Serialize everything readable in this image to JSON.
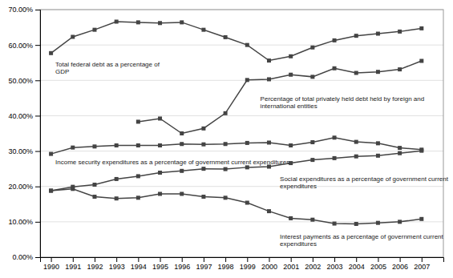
{
  "chart_data": {
    "type": "line",
    "x": [
      1990,
      1991,
      1992,
      1993,
      1994,
      1995,
      1996,
      1997,
      1998,
      1999,
      2000,
      2001,
      2002,
      2003,
      2004,
      2005,
      2006,
      2007
    ],
    "series": [
      {
        "color": "#444444",
        "marker": "square",
        "values": [
          0.577,
          0.623,
          0.643,
          0.666,
          0.664,
          0.662,
          0.664,
          0.643,
          0.622,
          0.6,
          0.556,
          0.568,
          0.593,
          0.613,
          0.626,
          0.632,
          0.638,
          0.647
        ]
      },
      {
        "color": "#444444",
        "marker": "square",
        "values": [
          0.292,
          0.31,
          0.313,
          0.316,
          0.316,
          0.316,
          0.32,
          0.319,
          0.32,
          0.323,
          0.324,
          0.316,
          0.325,
          0.338,
          0.326,
          0.322,
          0.309,
          0.304
        ]
      },
      {
        "color": "#444444",
        "marker": "square",
        "values": [
          0.188,
          0.199,
          0.205,
          0.221,
          0.229,
          0.239,
          0.244,
          0.25,
          0.249,
          0.254,
          0.256,
          0.266,
          0.275,
          0.28,
          0.285,
          0.287,
          0.294,
          0.301
        ]
      },
      {
        "color": "#444444",
        "marker": "square",
        "values": [
          0.188,
          0.193,
          0.171,
          0.166,
          0.168,
          0.179,
          0.179,
          0.171,
          0.168,
          0.154,
          0.13,
          0.11,
          0.106,
          0.095,
          0.094,
          0.097,
          0.1,
          0.108
        ]
      },
      {
        "color": "#444444",
        "marker": "square",
        "values": [
          null,
          null,
          null,
          null,
          0.383,
          0.392,
          0.35,
          0.364,
          0.407,
          0.501,
          0.503,
          0.516,
          0.51,
          0.534,
          0.521,
          0.524,
          0.531,
          0.555
        ]
      }
    ],
    "annotations": [
      {
        "text": "Total federal debt as a percentage of\nGDP",
        "x": 1990.2,
        "y": 0.555
      },
      {
        "text": "Percentage of total privately held debt held by foreign and international entities",
        "x": 1999.6,
        "y": 0.458
      },
      {
        "text": "Income security expenditures as a percentage of government current expenditures",
        "x": 1990.2,
        "y": 0.279
      },
      {
        "text": "Social expenditures as a percentage of government current expenditures",
        "x": 2000.5,
        "y": 0.232
      },
      {
        "text": "Interest payments as a percentage of government current\nexpenditures",
        "x": 2000.5,
        "y": 0.068
      }
    ],
    "xlim": [
      1989.5,
      2008.0
    ],
    "ylim": [
      0.0,
      0.7
    ],
    "xticks": [
      1990,
      1991,
      1992,
      1993,
      1994,
      1995,
      1996,
      1997,
      1998,
      1999,
      2000,
      2001,
      2002,
      2003,
      2004,
      2005,
      2006,
      2007
    ],
    "yticks": [
      {
        "value": 0.0,
        "label": "0.00%"
      },
      {
        "value": 0.1,
        "label": "10.00%"
      },
      {
        "value": 0.2,
        "label": "20.00%"
      },
      {
        "value": 0.3,
        "label": "30.00%"
      },
      {
        "value": 0.4,
        "label": "40.00%"
      },
      {
        "value": 0.5,
        "label": "50.00%"
      },
      {
        "value": 0.6,
        "label": "60.00%"
      },
      {
        "value": 0.7,
        "label": "70.00%"
      }
    ],
    "grid": true
  }
}
